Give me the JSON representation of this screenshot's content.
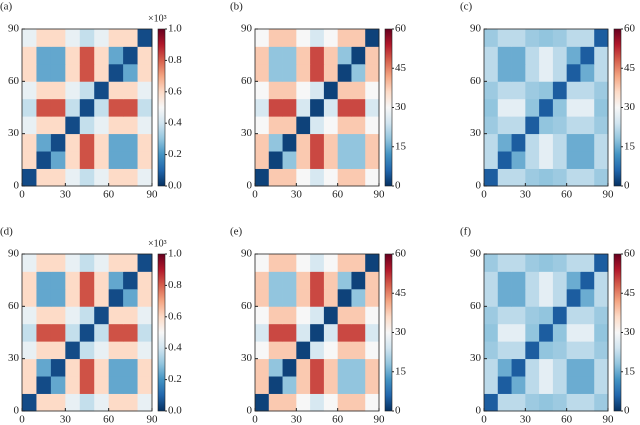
{
  "chart_data": [
    {
      "type": "heatmap",
      "label": "(a)",
      "colormap": "RdBu_r",
      "xlim": [
        0,
        90
      ],
      "ylim": [
        0,
        90
      ],
      "xticks": [
        0,
        30,
        60,
        90
      ],
      "yticks": [
        0,
        30,
        60,
        90
      ],
      "clim": [
        0,
        1
      ],
      "cticks": [
        {
          "value": 0,
          "label": "0.0"
        },
        {
          "value": 0.2,
          "label": "0.2"
        },
        {
          "value": 0.4,
          "label": "0.4"
        },
        {
          "value": 0.6,
          "label": "0.6"
        },
        {
          "value": 0.8,
          "label": "0.8"
        },
        {
          "value": 1,
          "label": "1.0"
        }
      ],
      "cbar_scale": "×10³",
      "z": [
        [
          0.05,
          0.6,
          0.6,
          0.46,
          0.38,
          0.46,
          0.6,
          0.6,
          0.46
        ],
        [
          0.6,
          0.05,
          0.24,
          0.6,
          0.82,
          0.6,
          0.24,
          0.24,
          0.6
        ],
        [
          0.6,
          0.24,
          0.05,
          0.6,
          0.82,
          0.6,
          0.24,
          0.24,
          0.6
        ],
        [
          0.46,
          0.6,
          0.6,
          0.05,
          0.38,
          0.46,
          0.6,
          0.6,
          0.46
        ],
        [
          0.38,
          0.82,
          0.82,
          0.38,
          0.05,
          0.38,
          0.82,
          0.82,
          0.38
        ],
        [
          0.46,
          0.6,
          0.6,
          0.46,
          0.38,
          0.05,
          0.6,
          0.6,
          0.46
        ],
        [
          0.6,
          0.24,
          0.24,
          0.6,
          0.82,
          0.6,
          0.05,
          0.24,
          0.6
        ],
        [
          0.6,
          0.24,
          0.24,
          0.6,
          0.82,
          0.6,
          0.24,
          0.05,
          0.6
        ],
        [
          0.46,
          0.6,
          0.6,
          0.46,
          0.38,
          0.46,
          0.6,
          0.6,
          0.05
        ]
      ]
    },
    {
      "type": "heatmap",
      "label": "(b)",
      "colormap": "RdBu_r",
      "xlim": [
        0,
        90
      ],
      "ylim": [
        0,
        90
      ],
      "xticks": [
        0,
        30,
        60,
        90
      ],
      "yticks": [
        0,
        30,
        60,
        90
      ],
      "clim": [
        0,
        60
      ],
      "cticks": [
        0,
        15,
        30,
        45,
        60
      ],
      "z": [
        [
          2,
          38,
          38,
          30,
          25,
          30,
          38,
          38,
          30
        ],
        [
          38,
          2,
          18,
          38,
          50,
          38,
          18,
          18,
          38
        ],
        [
          38,
          18,
          2,
          38,
          50,
          38,
          18,
          18,
          38
        ],
        [
          30,
          38,
          38,
          2,
          25,
          30,
          38,
          38,
          30
        ],
        [
          25,
          50,
          50,
          25,
          2,
          25,
          50,
          50,
          25
        ],
        [
          30,
          38,
          38,
          30,
          25,
          2,
          38,
          38,
          30
        ],
        [
          38,
          18,
          18,
          38,
          50,
          38,
          2,
          18,
          38
        ],
        [
          38,
          18,
          18,
          38,
          50,
          38,
          18,
          2,
          38
        ],
        [
          30,
          38,
          38,
          30,
          25,
          30,
          38,
          38,
          2
        ]
      ]
    },
    {
      "type": "heatmap",
      "label": "(c)",
      "colormap": "RdBu_r",
      "xlim": [
        0,
        90
      ],
      "ylim": [
        0,
        90
      ],
      "xticks": [
        0,
        30,
        60,
        90
      ],
      "yticks": [
        0,
        30,
        60,
        90
      ],
      "clim": [
        0,
        60
      ],
      "cticks": [
        0,
        15,
        30,
        45,
        60
      ],
      "z": [
        [
          5,
          22,
          22,
          19,
          18,
          19,
          22,
          22,
          19
        ],
        [
          22,
          5,
          15,
          22,
          27,
          22,
          15,
          15,
          22
        ],
        [
          22,
          15,
          5,
          22,
          27,
          22,
          15,
          15,
          22
        ],
        [
          19,
          22,
          22,
          5,
          18,
          19,
          22,
          22,
          19
        ],
        [
          18,
          27,
          27,
          18,
          5,
          18,
          27,
          27,
          18
        ],
        [
          19,
          22,
          22,
          19,
          18,
          5,
          22,
          22,
          19
        ],
        [
          22,
          15,
          15,
          22,
          27,
          22,
          5,
          15,
          22
        ],
        [
          22,
          15,
          15,
          22,
          27,
          22,
          15,
          5,
          22
        ],
        [
          19,
          22,
          22,
          19,
          18,
          19,
          22,
          22,
          5
        ]
      ]
    },
    {
      "type": "heatmap",
      "label": "(d)",
      "colormap": "RdBu_r",
      "xlim": [
        0,
        90
      ],
      "ylim": [
        0,
        90
      ],
      "xticks": [
        0,
        30,
        60,
        90
      ],
      "yticks": [
        0,
        30,
        60,
        90
      ],
      "clim": [
        0,
        1
      ],
      "cticks": [
        {
          "value": 0,
          "label": "0.0"
        },
        {
          "value": 0.2,
          "label": "0.2"
        },
        {
          "value": 0.4,
          "label": "0.4"
        },
        {
          "value": 0.6,
          "label": "0.6"
        },
        {
          "value": 0.8,
          "label": "0.8"
        },
        {
          "value": 1,
          "label": "1.0"
        }
      ],
      "cbar_scale": "×10³",
      "z": [
        [
          0.05,
          0.6,
          0.6,
          0.46,
          0.38,
          0.46,
          0.6,
          0.6,
          0.46
        ],
        [
          0.6,
          0.05,
          0.24,
          0.6,
          0.82,
          0.6,
          0.24,
          0.24,
          0.6
        ],
        [
          0.6,
          0.24,
          0.05,
          0.6,
          0.82,
          0.6,
          0.24,
          0.24,
          0.6
        ],
        [
          0.46,
          0.6,
          0.6,
          0.05,
          0.38,
          0.46,
          0.6,
          0.6,
          0.46
        ],
        [
          0.38,
          0.82,
          0.82,
          0.38,
          0.05,
          0.38,
          0.82,
          0.82,
          0.38
        ],
        [
          0.46,
          0.6,
          0.6,
          0.46,
          0.38,
          0.05,
          0.6,
          0.6,
          0.46
        ],
        [
          0.6,
          0.24,
          0.24,
          0.6,
          0.82,
          0.6,
          0.05,
          0.24,
          0.6
        ],
        [
          0.6,
          0.24,
          0.24,
          0.6,
          0.82,
          0.6,
          0.24,
          0.05,
          0.6
        ],
        [
          0.46,
          0.6,
          0.6,
          0.46,
          0.38,
          0.46,
          0.6,
          0.6,
          0.05
        ]
      ]
    },
    {
      "type": "heatmap",
      "label": "(e)",
      "colormap": "RdBu_r",
      "xlim": [
        0,
        90
      ],
      "ylim": [
        0,
        90
      ],
      "xticks": [
        0,
        30,
        60,
        90
      ],
      "yticks": [
        0,
        30,
        60,
        90
      ],
      "clim": [
        0,
        60
      ],
      "cticks": [
        0,
        15,
        30,
        45,
        60
      ],
      "z": [
        [
          2,
          38,
          38,
          30,
          25,
          30,
          38,
          38,
          30
        ],
        [
          38,
          2,
          18,
          38,
          50,
          38,
          18,
          18,
          38
        ],
        [
          38,
          18,
          2,
          38,
          50,
          38,
          18,
          18,
          38
        ],
        [
          30,
          38,
          38,
          2,
          25,
          30,
          38,
          38,
          30
        ],
        [
          25,
          50,
          50,
          25,
          2,
          25,
          50,
          50,
          25
        ],
        [
          30,
          38,
          38,
          30,
          25,
          2,
          38,
          38,
          30
        ],
        [
          38,
          18,
          18,
          38,
          50,
          38,
          2,
          18,
          38
        ],
        [
          38,
          18,
          18,
          38,
          50,
          38,
          18,
          2,
          38
        ],
        [
          30,
          38,
          38,
          30,
          25,
          30,
          38,
          38,
          2
        ]
      ]
    },
    {
      "type": "heatmap",
      "label": "(f)",
      "colormap": "RdBu_r",
      "xlim": [
        0,
        90
      ],
      "ylim": [
        0,
        90
      ],
      "xticks": [
        0,
        30,
        60,
        90
      ],
      "yticks": [
        0,
        30,
        60,
        90
      ],
      "clim": [
        0,
        60
      ],
      "cticks": [
        0,
        15,
        30,
        45,
        60
      ],
      "z": [
        [
          5,
          22,
          22,
          19,
          18,
          19,
          22,
          22,
          19
        ],
        [
          22,
          5,
          15,
          22,
          27,
          22,
          15,
          15,
          22
        ],
        [
          22,
          15,
          5,
          22,
          27,
          22,
          15,
          15,
          22
        ],
        [
          19,
          22,
          22,
          5,
          18,
          19,
          22,
          22,
          19
        ],
        [
          18,
          27,
          27,
          18,
          5,
          18,
          27,
          27,
          18
        ],
        [
          19,
          22,
          22,
          19,
          18,
          5,
          22,
          22,
          19
        ],
        [
          22,
          15,
          15,
          22,
          27,
          22,
          5,
          15,
          22
        ],
        [
          22,
          15,
          15,
          22,
          27,
          22,
          15,
          5,
          22
        ],
        [
          19,
          22,
          22,
          19,
          18,
          19,
          22,
          22,
          5
        ]
      ]
    }
  ]
}
